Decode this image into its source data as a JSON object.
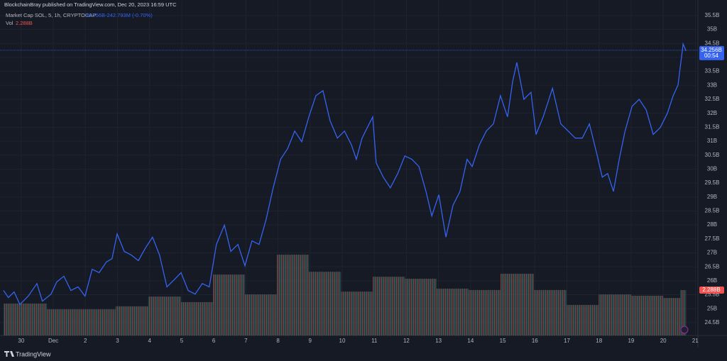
{
  "header": {
    "publisher": "BlockchainBray published on TradingView.com, Dec 20, 2023 16:59 UTC"
  },
  "chart_data": {
    "type": "line",
    "title": "Market Cap SOL, 5, 1h, CRYPTOCAP",
    "color": "#3563f0",
    "x": [
      -0.55,
      -0.4,
      -0.22,
      -0.04,
      0.22,
      0.49,
      0.66,
      0.93,
      1.11,
      1.33,
      1.55,
      1.77,
      1.99,
      2.21,
      2.43,
      2.65,
      2.83,
      2.99,
      3.21,
      3.43,
      3.65,
      3.87,
      4.09,
      4.31,
      4.54,
      4.76,
      4.98,
      5.2,
      5.42,
      5.64,
      5.86,
      6.08,
      6.33,
      6.53,
      6.75,
      6.97,
      7.19,
      7.41,
      7.63,
      7.85,
      8.08,
      8.3,
      8.52,
      8.74,
      8.96,
      9.18,
      9.4,
      9.62,
      9.85,
      10.07,
      10.29,
      10.44,
      10.62,
      10.84,
      10.95,
      11.06,
      11.28,
      11.5,
      11.73,
      11.95,
      12.17,
      12.39,
      12.61,
      12.79,
      13.01,
      13.23,
      13.45,
      13.67,
      13.89,
      14.05,
      14.27,
      14.49,
      14.71,
      14.93,
      15.15,
      15.31,
      15.44,
      15.66,
      15.88,
      16.04,
      16.26,
      16.55,
      16.81,
      17.04,
      17.26,
      17.48,
      17.7,
      17.92,
      18.1,
      18.27,
      18.45,
      18.63,
      18.81,
      19.03,
      19.25,
      19.47,
      19.69,
      19.91,
      20.13,
      20.31,
      20.46,
      20.62,
      20.71
    ],
    "values": [
      25.65,
      25.4,
      25.6,
      25.15,
      25.45,
      25.9,
      25.27,
      25.52,
      25.96,
      26.16,
      25.65,
      25.78,
      25.45,
      26.41,
      26.29,
      26.67,
      26.79,
      27.68,
      27.05,
      26.92,
      26.72,
      27.17,
      27.56,
      26.92,
      25.78,
      26.03,
      26.29,
      25.65,
      25.52,
      25.9,
      25.78,
      27.3,
      27.99,
      27.05,
      27.3,
      26.54,
      27.43,
      27.3,
      28.19,
      29.33,
      30.35,
      30.73,
      31.36,
      30.98,
      31.87,
      32.63,
      32.81,
      31.74,
      31.11,
      31.36,
      30.86,
      30.35,
      31.11,
      31.62,
      31.87,
      30.22,
      29.71,
      29.33,
      29.84,
      30.47,
      30.35,
      30.09,
      29.2,
      28.32,
      29.08,
      27.56,
      28.7,
      29.2,
      30.35,
      30.09,
      30.86,
      31.36,
      31.62,
      32.63,
      31.87,
      33.14,
      33.82,
      32.5,
      32.75,
      31.24,
      31.87,
      32.89,
      31.62,
      31.36,
      31.11,
      31.11,
      31.62,
      30.6,
      29.71,
      29.84,
      29.2,
      30.35,
      31.36,
      32.25,
      32.5,
      32.12,
      31.24,
      31.49,
      32.0,
      32.63,
      33.01,
      34.48,
      34.23
    ],
    "last_value": 34.256,
    "last_value_label": "34.256B",
    "change_label": "-242.793M (-0.70%)",
    "countdown": "00:54",
    "volume": {
      "name": "Vol",
      "last_label": "2.288B",
      "up_color": "#1f6f66",
      "down_color": "#8d3a3f",
      "bins": [
        -0.55,
        0.8,
        2.94,
        3.96,
        4.98,
        5.97,
        6.97,
        7.96,
        8.96,
        9.96,
        10.95,
        11.95,
        12.94,
        13.94,
        14.93,
        15.97,
        16.99,
        17.99,
        19.0,
        20.0,
        20.53,
        20.71
      ],
      "values": [
        1.61,
        1.32,
        1.47,
        1.96,
        1.68,
        3.07,
        2.07,
        4.07,
        3.21,
        2.21,
        2.96,
        2.86,
        2.36,
        2.29,
        3.11,
        2.29,
        1.54,
        2.07,
        2.0,
        1.89,
        2.288
      ],
      "ylim": [
        0,
        16.4
      ]
    },
    "xlim": [
      -0.66,
      21.08
    ],
    "xticks": [
      {
        "value": 0,
        "label": "30"
      },
      {
        "value": 1,
        "label": "Dec"
      },
      2,
      3,
      4,
      5,
      6,
      7,
      8,
      9,
      10,
      11,
      12,
      13,
      14,
      15,
      16,
      17,
      18,
      19,
      20,
      21
    ],
    "ylim": [
      24.04,
      35.7
    ],
    "yticks": [
      {
        "value": 24.5,
        "label": "24.5B"
      },
      {
        "value": 25,
        "label": "25B"
      },
      {
        "value": 25.5,
        "label": "25.5B"
      },
      {
        "value": 26,
        "label": "26B"
      },
      {
        "value": 26.5,
        "label": "26.5B"
      },
      {
        "value": 27,
        "label": "27B"
      },
      {
        "value": 27.5,
        "label": "27.5B"
      },
      {
        "value": 28,
        "label": "28B"
      },
      {
        "value": 28.5,
        "label": "28.5B"
      },
      {
        "value": 29,
        "label": "29B"
      },
      {
        "value": 29.5,
        "label": "29.5B"
      },
      {
        "value": 30,
        "label": "30B"
      },
      {
        "value": 30.5,
        "label": "30.5B"
      },
      {
        "value": 31,
        "label": "31B"
      },
      {
        "value": 31.5,
        "label": "31.5B"
      },
      {
        "value": 32,
        "label": "32B"
      },
      {
        "value": 32.5,
        "label": "32.5B"
      },
      {
        "value": 33,
        "label": "33B"
      },
      {
        "value": 33.5,
        "label": "33.5B"
      },
      {
        "value": 34,
        "label": "34B"
      },
      {
        "value": 34.5,
        "label": "34.5B"
      },
      {
        "value": 35,
        "label": "35B"
      },
      {
        "value": 35.5,
        "label": "35.5B"
      }
    ],
    "grid": true
  },
  "footer": {
    "brand": "TradingView"
  }
}
